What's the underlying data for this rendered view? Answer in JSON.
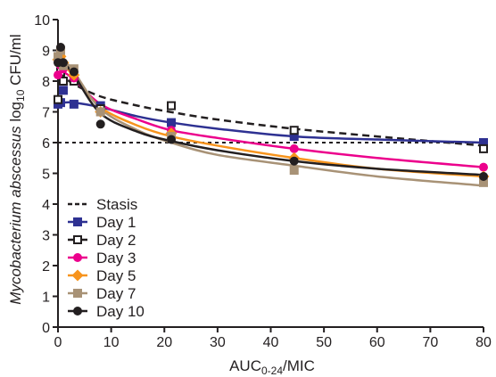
{
  "chart_data": {
    "type": "scatter",
    "xlabel_main": "AUC",
    "xlabel_sub": "0-24",
    "xlabel_tail": "/MIC",
    "ylabel_italic": "Mycobacterium abscessus",
    "ylabel_prefix": " log",
    "ylabel_sub": "10",
    "ylabel_tail": " CFU/ml",
    "xlim": [
      0,
      80
    ],
    "ylim": [
      0,
      10
    ],
    "x_ticks": [
      0,
      10,
      20,
      30,
      40,
      50,
      60,
      70,
      80
    ],
    "y_ticks": [
      0,
      1,
      2,
      3,
      4,
      5,
      6,
      7,
      8,
      9,
      10
    ],
    "grid": false,
    "legend_position": "bottom-left",
    "stasis": {
      "name": "Stasis",
      "y": 6,
      "color": "#231f20"
    },
    "dashed_fit": {
      "note": "Dashed fitted curve drawn in the chart",
      "x": [
        0,
        1,
        3,
        8,
        15,
        21,
        30,
        44.4,
        60,
        80
      ],
      "y": [
        8.2,
        8.15,
        7.9,
        7.5,
        7.2,
        7.0,
        6.75,
        6.45,
        6.2,
        5.9
      ]
    },
    "series": [
      {
        "name": "Day 1",
        "marker": "square",
        "color": "#2e3192",
        "points": {
          "x": [
            0,
            0.5,
            1,
            3,
            8,
            21.3,
            44.4,
            80
          ],
          "y": [
            7.25,
            7.3,
            7.7,
            7.25,
            7.2,
            6.65,
            6.2,
            6.0
          ]
        },
        "curve": {
          "x": [
            0,
            0.5,
            1,
            3,
            8,
            15,
            21.3,
            30,
            44.4,
            60,
            80
          ],
          "y": [
            7.25,
            7.28,
            7.3,
            7.3,
            7.15,
            6.85,
            6.65,
            6.45,
            6.2,
            6.1,
            6.0
          ]
        }
      },
      {
        "name": "Day 2",
        "marker": "open-square",
        "color": "#231f20",
        "points": {
          "x": [
            0,
            0.5,
            1,
            3,
            8,
            21.3,
            44.4,
            80
          ],
          "y": [
            7.4,
            8.3,
            8.0,
            8.0,
            7.1,
            7.2,
            6.4,
            5.8
          ]
        },
        "curve": null
      },
      {
        "name": "Day 3",
        "marker": "circle",
        "color": "#ec008c",
        "points": {
          "x": [
            0,
            0.5,
            1,
            3,
            8,
            21.3,
            44.4,
            80
          ],
          "y": [
            8.2,
            8.5,
            8.4,
            8.1,
            7.0,
            6.4,
            5.8,
            5.2
          ]
        },
        "curve": {
          "x": [
            0,
            1,
            3,
            8,
            15,
            21.3,
            30,
            44.4,
            60,
            80
          ],
          "y": [
            8.35,
            8.3,
            8.05,
            7.25,
            6.75,
            6.4,
            6.15,
            5.8,
            5.5,
            5.2
          ]
        }
      },
      {
        "name": "Day 5",
        "marker": "diamond",
        "color": "#f7941d",
        "points": {
          "x": [
            0,
            0.5,
            1,
            3,
            8,
            21.3,
            44.4,
            80
          ],
          "y": [
            8.7,
            8.8,
            8.6,
            8.2,
            7.0,
            6.3,
            5.5,
            4.9
          ]
        },
        "curve": {
          "x": [
            0,
            1,
            3,
            8,
            15,
            21.3,
            30,
            44.4,
            60,
            80
          ],
          "y": [
            8.65,
            8.55,
            8.15,
            7.15,
            6.55,
            6.2,
            5.9,
            5.5,
            5.15,
            4.9
          ]
        }
      },
      {
        "name": "Day 7",
        "marker": "square",
        "color": "#a89276",
        "points": {
          "x": [
            0,
            0.5,
            1,
            3,
            8,
            21.3,
            44.4,
            80
          ],
          "y": [
            8.8,
            9.0,
            8.5,
            8.4,
            7.0,
            6.2,
            5.1,
            4.7
          ]
        },
        "curve": {
          "x": [
            0,
            1,
            3,
            8,
            15,
            21.3,
            30,
            44.4,
            60,
            80
          ],
          "y": [
            8.8,
            8.7,
            8.3,
            7.1,
            6.4,
            6.0,
            5.6,
            5.25,
            4.9,
            4.6
          ]
        }
      },
      {
        "name": "Day 10",
        "marker": "circle",
        "color": "#231f20",
        "points": {
          "x": [
            0,
            0.5,
            1,
            3,
            8,
            21.3,
            44.4,
            80
          ],
          "y": [
            8.6,
            9.1,
            8.6,
            8.3,
            6.6,
            6.1,
            5.4,
            4.9
          ]
        },
        "curve": {
          "x": [
            0,
            1,
            3,
            8,
            15,
            21.3,
            30,
            44.4,
            60,
            80
          ],
          "y": [
            8.7,
            8.6,
            8.2,
            6.95,
            6.35,
            6.05,
            5.75,
            5.4,
            5.15,
            4.95
          ]
        }
      }
    ]
  }
}
